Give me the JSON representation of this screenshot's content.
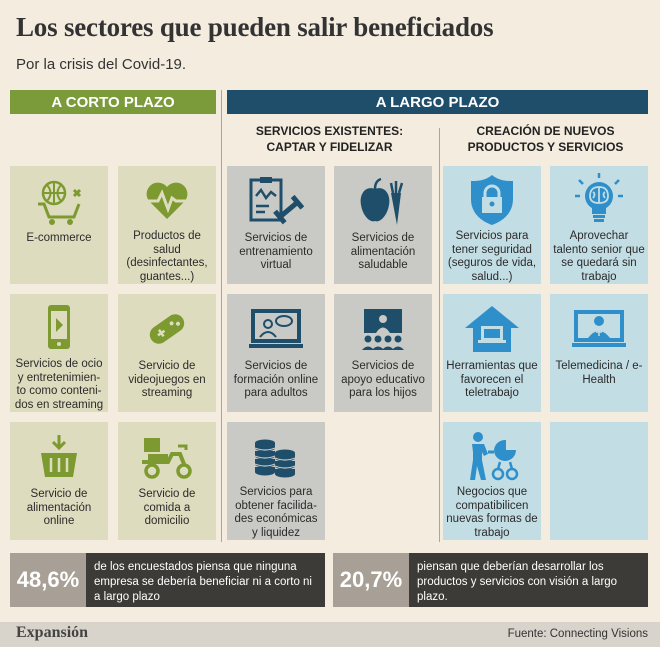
{
  "title": "Los sectores que pueden salir beneficiados",
  "subtitle": "Por la crisis del Covid-19.",
  "short_term": {
    "heading": "A CORTO PLAZO",
    "cards": [
      {
        "label": "E-commerce",
        "icon": "ecommerce-icon"
      },
      {
        "label": "Productos de salud (desinfectantes, guantes...)",
        "icon": "heartbeat-icon"
      },
      {
        "label": "Servicios de ocio y entretenimien-to como conteni-dos en streaming",
        "icon": "play-phone-icon"
      },
      {
        "label": "Servicio de videojuegos en streaming",
        "icon": "gamepad-icon"
      },
      {
        "label": "Servicio de alimentación online",
        "icon": "shopping-basket-icon"
      },
      {
        "label": "Servicio de comida a domicilio",
        "icon": "delivery-scooter-icon"
      }
    ]
  },
  "long_term": {
    "heading": "A LARGO PLAZO",
    "existing": {
      "heading_line1": "SERVICIOS EXISTENTES:",
      "heading_line2": "CAPTAR Y FIDELIZAR",
      "cards": [
        {
          "label": "Servicios de entrenamiento virtual",
          "icon": "training-icon"
        },
        {
          "label": "Servicios de alimentación saludable",
          "icon": "healthy-food-icon"
        },
        {
          "label": "Servicios de formación online para adultos",
          "icon": "online-training-icon"
        },
        {
          "label": "Servicios de apoyo educativo para los hijos",
          "icon": "classroom-icon"
        },
        {
          "label": "Servicios para obtener facilida-des económicas y liquidez",
          "icon": "coins-icon"
        }
      ]
    },
    "new": {
      "heading_line1": "CREACIÓN DE NUEVOS",
      "heading_line2": "PRODUCTOS Y SERVICIOS",
      "cards": [
        {
          "label": "Servicios para tener seguridad (seguros de vida, salud...)",
          "icon": "shield-lock-icon"
        },
        {
          "label": "Aprovechar talento senior que se quedará sin trabajo",
          "icon": "lightbulb-brain-icon"
        },
        {
          "label": "Herramientas que favorecen el teletrabajo",
          "icon": "home-laptop-icon"
        },
        {
          "label": "Telemedicina / e-Health",
          "icon": "telemedicine-icon"
        },
        {
          "label": "Negocios que compatibilicen nuevas formas de trabajo",
          "icon": "mother-stroller-icon"
        }
      ]
    }
  },
  "stats": [
    {
      "value": "48,6%",
      "text": "de los encuestados piensa que ninguna empresa se debería beneficiar ni a corto ni a largo plazo"
    },
    {
      "value": "20,7%",
      "text": "piensan que deberían desarrollar los productos y servicios con visión a largo plazo."
    }
  ],
  "footer": {
    "brand": "Expansión",
    "source": "Fuente: Connecting Visions"
  },
  "colors": {
    "green_band": "#7b9a3a",
    "blue_band": "#1f4e6b",
    "green_card": "#dedcbe",
    "gray_card": "#c9cac5",
    "blue_card": "#c2dde3",
    "icon_green": "#7c9a2f",
    "icon_navy": "#1f4e6b",
    "icon_blue": "#2f8fcb"
  }
}
